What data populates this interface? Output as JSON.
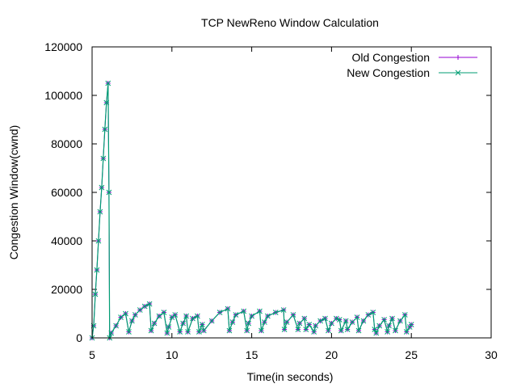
{
  "chart_data": {
    "type": "line",
    "title": "TCP NewReno Window Calculation",
    "xlabel": "Time(in seconds)",
    "ylabel": "Congestion Window(cwnd)",
    "xlim": [
      5,
      30
    ],
    "ylim": [
      0,
      120000
    ],
    "xticks": [
      5,
      10,
      15,
      20,
      25,
      30
    ],
    "yticks": [
      0,
      20000,
      40000,
      60000,
      80000,
      100000,
      120000
    ],
    "xtick_labels": [
      "5",
      "10",
      "15",
      "20",
      "25",
      "30"
    ],
    "ytick_labels": [
      "0",
      "20000",
      "40000",
      "60000",
      "80000",
      "100000",
      "120000"
    ],
    "grid": false,
    "legend_position": "top-right",
    "series": [
      {
        "name": "Old Congestion",
        "color": "#9400d3",
        "marker": "plus",
        "x": [
          5.0,
          5.1,
          5.2,
          5.3,
          5.4,
          5.5,
          5.6,
          5.7,
          5.8,
          5.9,
          6.0,
          6.06,
          6.1,
          6.2,
          6.5,
          6.8,
          7.1,
          7.3,
          7.5,
          7.7,
          8.0,
          8.3,
          8.6,
          8.7,
          8.9,
          9.2,
          9.5,
          9.7,
          9.8,
          10.0,
          10.2,
          10.5,
          10.7,
          10.9,
          11.0,
          11.3,
          11.6,
          11.7,
          11.9,
          12.0,
          12.5,
          13.0,
          13.5,
          13.6,
          13.8,
          14.0,
          14.5,
          14.7,
          14.8,
          15.0,
          15.5,
          15.6,
          15.8,
          16.0,
          16.5,
          17.0,
          17.05,
          17.2,
          17.6,
          17.9,
          18.0,
          18.3,
          18.4,
          18.6,
          18.9,
          19.0,
          19.3,
          19.6,
          19.8,
          20.0,
          20.3,
          20.5,
          20.6,
          20.9,
          21.0,
          21.3,
          21.6,
          21.7,
          22.0,
          22.3,
          22.6,
          22.7,
          22.8,
          23.0,
          23.3,
          23.5,
          23.6,
          23.8,
          24.0,
          24.3,
          24.6,
          24.7,
          24.9,
          25.0
        ],
        "y": [
          0,
          5000,
          18000,
          28000,
          40000,
          52000,
          62000,
          74000,
          86000,
          97000,
          105000,
          60000,
          0,
          2000,
          5000,
          8500,
          10000,
          2500,
          7000,
          9500,
          11500,
          13000,
          14000,
          3000,
          6000,
          9000,
          10500,
          2000,
          4500,
          8500,
          9500,
          2500,
          6000,
          9000,
          2500,
          8000,
          9000,
          2500,
          5500,
          3000,
          7000,
          10500,
          12000,
          3000,
          6500,
          9500,
          11000,
          3000,
          6000,
          9000,
          11000,
          3000,
          6500,
          9000,
          10500,
          11500,
          3500,
          6500,
          9500,
          3500,
          6000,
          8000,
          3500,
          5500,
          2500,
          5000,
          7000,
          8000,
          3000,
          6000,
          8000,
          7500,
          3000,
          7000,
          3500,
          6500,
          8500,
          3000,
          7000,
          9500,
          10500,
          3500,
          2000,
          5000,
          7500,
          2500,
          5000,
          8000,
          3000,
          7000,
          9500,
          2500,
          4500,
          5500
        ]
      },
      {
        "name": "New Congestion",
        "color": "#009e73",
        "marker": "cross",
        "x": [
          5.0,
          5.1,
          5.2,
          5.3,
          5.4,
          5.5,
          5.6,
          5.7,
          5.8,
          5.9,
          6.0,
          6.06,
          6.1,
          6.2,
          6.5,
          6.8,
          7.1,
          7.3,
          7.5,
          7.7,
          8.0,
          8.3,
          8.6,
          8.7,
          8.9,
          9.2,
          9.5,
          9.7,
          9.8,
          10.0,
          10.2,
          10.5,
          10.7,
          10.9,
          11.0,
          11.3,
          11.6,
          11.7,
          11.9,
          12.0,
          12.5,
          13.0,
          13.5,
          13.6,
          13.8,
          14.0,
          14.5,
          14.7,
          14.8,
          15.0,
          15.5,
          15.6,
          15.8,
          16.0,
          16.5,
          17.0,
          17.05,
          17.2,
          17.6,
          17.9,
          18.0,
          18.3,
          18.4,
          18.6,
          18.9,
          19.0,
          19.3,
          19.6,
          19.8,
          20.0,
          20.3,
          20.5,
          20.6,
          20.9,
          21.0,
          21.3,
          21.6,
          21.7,
          22.0,
          22.3,
          22.6,
          22.7,
          22.8,
          23.0,
          23.3,
          23.5,
          23.6,
          23.8,
          24.0,
          24.3,
          24.6,
          24.7,
          24.9,
          25.0
        ],
        "y": [
          0,
          5000,
          18000,
          28000,
          40000,
          52000,
          62000,
          74000,
          86000,
          97000,
          105000,
          60000,
          0,
          2000,
          5000,
          8500,
          10000,
          2500,
          7000,
          9500,
          11500,
          13000,
          14000,
          3000,
          6000,
          9000,
          10500,
          2000,
          4500,
          8500,
          9500,
          2500,
          6000,
          9000,
          2500,
          8000,
          9000,
          2500,
          5500,
          3000,
          7000,
          10500,
          12000,
          3000,
          6500,
          9500,
          11000,
          3000,
          6000,
          9000,
          11000,
          3000,
          6500,
          9000,
          10500,
          11500,
          3500,
          6500,
          9500,
          3500,
          6000,
          8000,
          3500,
          5500,
          2500,
          5000,
          7000,
          8000,
          3000,
          6000,
          8000,
          7500,
          3000,
          7000,
          3500,
          6500,
          8500,
          3000,
          7000,
          9500,
          10500,
          3500,
          2000,
          5000,
          7500,
          2500,
          5000,
          8000,
          3000,
          7000,
          9500,
          2500,
          4500,
          5500
        ]
      }
    ]
  }
}
